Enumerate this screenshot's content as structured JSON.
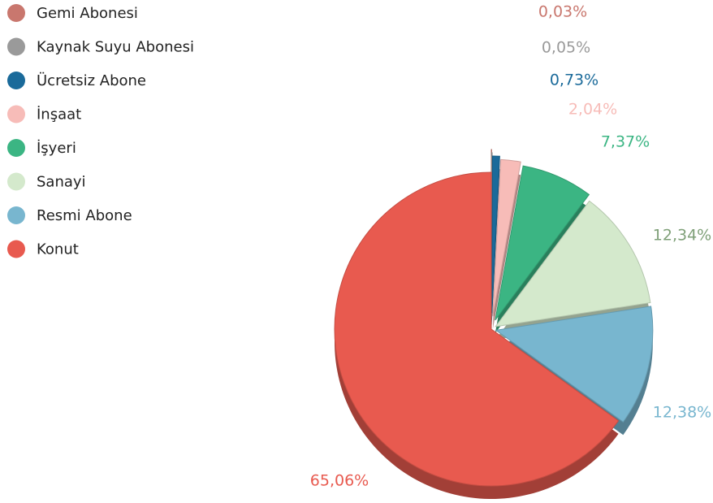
{
  "chart_data": {
    "type": "pie",
    "categories": [
      "Gemi Abonesi",
      "Kaynak Suyu Abonesi",
      "Ücretsiz Abone",
      "İnşaat",
      "İşyeri",
      "Sanayi",
      "Resmi Abone",
      "Konut"
    ],
    "values": [
      0.03,
      0.05,
      0.73,
      2.04,
      7.37,
      12.34,
      12.38,
      65.06
    ],
    "value_labels": [
      "0,03%",
      "0,05%",
      "0,73%",
      "2,04%",
      "7,37%",
      "12,34%",
      "12,38%",
      "65,06%"
    ],
    "colors": [
      "#c9776e",
      "#9a9a9a",
      "#1a6a9a",
      "#f7bcb8",
      "#3bb583",
      "#d4e9cc",
      "#78b6cf",
      "#e85a4f"
    ],
    "legend": "top-left"
  }
}
